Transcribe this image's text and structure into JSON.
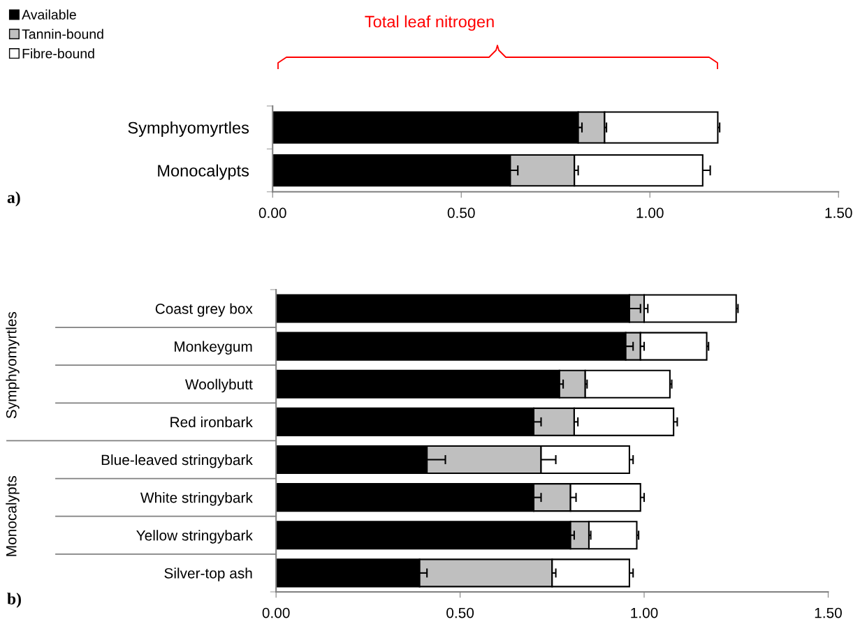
{
  "chart_data": [
    {
      "type": "bar",
      "orientation": "horizontal",
      "stacked": true,
      "legend": "top left",
      "grid": false,
      "categories": [
        "Symphyomyrtles",
        "Monocalypts"
      ],
      "series": [
        {
          "name": "Available",
          "color": "#000000",
          "values": [
            0.81,
            0.63
          ],
          "errors": [
            [
              0.81,
              0.82
            ],
            [
              0.63,
              0.65
            ]
          ]
        },
        {
          "name": "Tannin-bound",
          "color": "#bfbfbf",
          "values": [
            0.07,
            0.17
          ],
          "errors": [
            [
              0.88,
              0.885
            ],
            [
              0.8,
              0.81
            ]
          ]
        },
        {
          "name": "Fibre-bound",
          "color": "#ffffff",
          "values": [
            0.3,
            0.34
          ],
          "errors": [
            [
              1.18,
              1.185
            ],
            [
              1.14,
              1.16
            ]
          ]
        }
      ],
      "xlim": [
        0,
        1.5
      ],
      "xticks": [
        {
          "value": 0,
          "label": "0.00"
        },
        {
          "value": 0.5,
          "label": "0.50"
        },
        {
          "value": 1,
          "label": "1.00"
        },
        {
          "value": 1.5,
          "label": "1.50"
        }
      ],
      "annotations": [
        "Total leaf nitrogen",
        "a)"
      ]
    },
    {
      "type": "bar",
      "orientation": "horizontal",
      "stacked": true,
      "grid": false,
      "categories": [
        "Coast grey box",
        "Monkeygum",
        "Woollybutt",
        "Red ironbark",
        "Blue-leaved stringybark",
        "White stringybark",
        "Yellow stringybark",
        "Silver-top ash"
      ],
      "series": [
        {
          "color": "#000000",
          "values": [
            0.96,
            0.95,
            0.77,
            0.7,
            0.41,
            0.7,
            0.8,
            0.39
          ],
          "errors": [
            [
              0.96,
              0.99
            ],
            [
              0.95,
              0.97
            ],
            [
              0.77,
              0.78
            ],
            [
              0.7,
              0.72
            ],
            [
              0.41,
              0.46
            ],
            [
              0.7,
              0.72
            ],
            [
              0.8,
              0.81
            ],
            [
              0.39,
              0.41
            ]
          ]
        },
        {
          "color": "#bfbfbf",
          "values": [
            0.04,
            0.04,
            0.07,
            0.11,
            0.31,
            0.1,
            0.05,
            0.36
          ],
          "errors": [
            [
              1.0,
              1.01
            ],
            [
              0.99,
              1.0
            ],
            [
              0.84,
              0.845
            ],
            [
              0.81,
              0.82
            ],
            [
              0.72,
              0.76
            ],
            [
              0.8,
              0.815
            ],
            [
              0.85,
              0.855
            ],
            [
              0.75,
              0.76
            ]
          ]
        },
        {
          "color": "#ffffff",
          "values": [
            0.25,
            0.18,
            0.23,
            0.27,
            0.24,
            0.19,
            0.13,
            0.21
          ],
          "errors": [
            [
              1.25,
              1.255
            ],
            [
              1.17,
              1.175
            ],
            [
              1.07,
              1.075
            ],
            [
              1.08,
              1.09
            ],
            [
              0.96,
              0.97
            ],
            [
              0.99,
              1.0
            ],
            [
              0.98,
              0.985
            ],
            [
              0.96,
              0.97
            ]
          ]
        }
      ],
      "xlim": [
        0,
        1.5
      ],
      "xticks": [
        {
          "value": 0,
          "label": "0.00"
        },
        {
          "value": 0.5,
          "label": "0.50"
        },
        {
          "value": 1,
          "label": "1.00"
        },
        {
          "value": 1.5,
          "label": "1.50"
        }
      ],
      "annotations": [
        "Symphyomyrtles",
        "Monocalypts",
        "b)"
      ]
    }
  ]
}
